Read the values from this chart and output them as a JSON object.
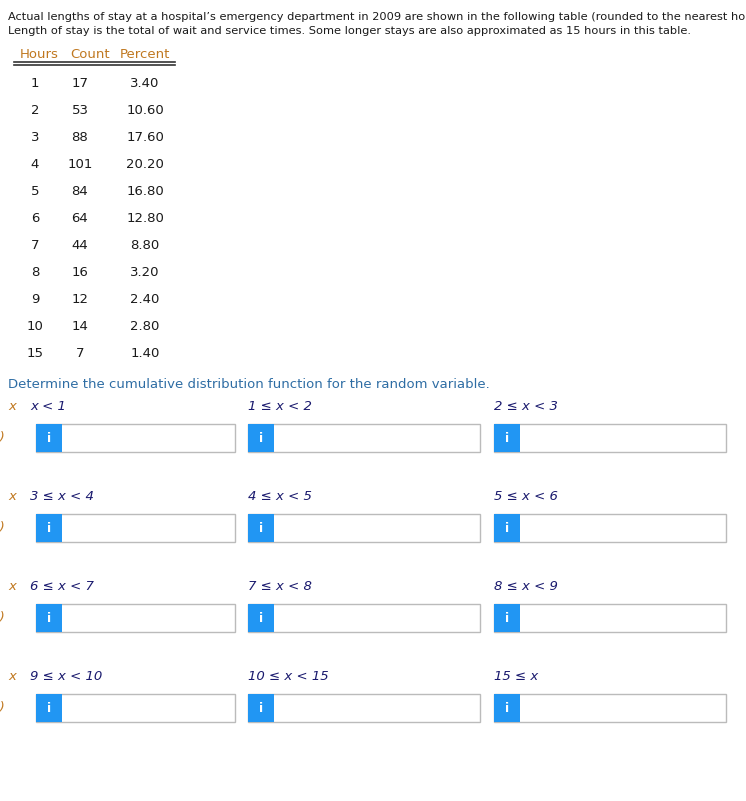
{
  "title_line1": "Actual lengths of stay at a hospital’s emergency department in 2009 are shown in the following table (rounded to the nearest hour).",
  "title_line2": "Length of stay is the total of wait and service times. Some longer stays are also approximated as 15 hours in this table.",
  "table_headers": [
    "Hours",
    "Count",
    "Percent"
  ],
  "table_data": [
    [
      "1",
      "17",
      "3.40"
    ],
    [
      "2",
      "53",
      "10.60"
    ],
    [
      "3",
      "88",
      "17.60"
    ],
    [
      "4",
      "101",
      "20.20"
    ],
    [
      "5",
      "84",
      "16.80"
    ],
    [
      "6",
      "64",
      "12.80"
    ],
    [
      "7",
      "44",
      "8.80"
    ],
    [
      "8",
      "16",
      "3.20"
    ],
    [
      "9",
      "12",
      "2.40"
    ],
    [
      "10",
      "14",
      "2.80"
    ],
    [
      "15",
      "7",
      "1.40"
    ]
  ],
  "determine_text": "Determine the cumulative distribution function for the random variable.",
  "cdf_rows": [
    [
      "x < 1",
      "1 ≤ x < 2",
      "2 ≤ x < 3"
    ],
    [
      "3 ≤ x < 4",
      "4 ≤ x < 5",
      "5 ≤ x < 6"
    ],
    [
      "6 ≤ x < 7",
      "7 ≤ x < 8",
      "8 ≤ x < 9"
    ],
    [
      "9 ≤ x < 10",
      "10 ≤ x < 15",
      "15 ≤ x"
    ]
  ],
  "bg_color": "#ffffff",
  "text_color_black": "#1a1a1a",
  "header_color": "#c07820",
  "table_number_color": "#1a1a1a",
  "determine_text_color": "#2e6da4",
  "box_border_color": "#bbbbbb",
  "button_blue": "#2196f3",
  "button_text_color": "#ffffff",
  "fx_label_color": "#c07820",
  "x_label_color": "#1a1a6e",
  "x_var_color": "#c07820",
  "line_color": "#333333"
}
